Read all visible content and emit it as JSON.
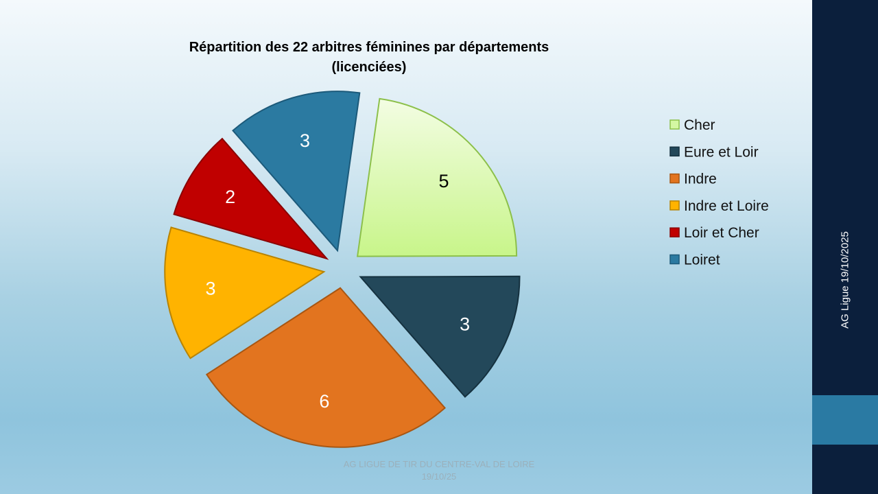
{
  "chart_data": {
    "type": "pie",
    "title_lines": [
      "Répartition des 22 arbitres féminines par départements",
      "(licenciées)"
    ],
    "categories": [
      "Cher",
      "Eure et Loir",
      "Indre",
      "Indre et Loire",
      "Loir et Cher",
      "Loiret"
    ],
    "values": [
      5,
      3,
      6,
      3,
      2,
      3
    ],
    "labels": [
      "5",
      "3",
      "6",
      "3",
      "2",
      "3"
    ],
    "colors": [
      "#d4f7a3",
      "#23485a",
      "#e2741f",
      "#ffb300",
      "#c00000",
      "#2b7aa1"
    ],
    "stroke_colors": [
      "#8cc04a",
      "#15313f",
      "#a85612",
      "#b88300",
      "#8a0000",
      "#1c5a7a"
    ],
    "label_colors": [
      "#000000",
      "#ffffff",
      "#ffffff",
      "#ffffff",
      "#ffffff",
      "#ffffff"
    ],
    "legend_position": "right",
    "exploded": true
  },
  "footer": {
    "line1": "AG LIGUE DE TIR DU CENTRE-VAL DE LOIRE",
    "line2": "19/10/25"
  },
  "sidebar": {
    "vertical_text": "AG Ligue 19/10/2025"
  }
}
